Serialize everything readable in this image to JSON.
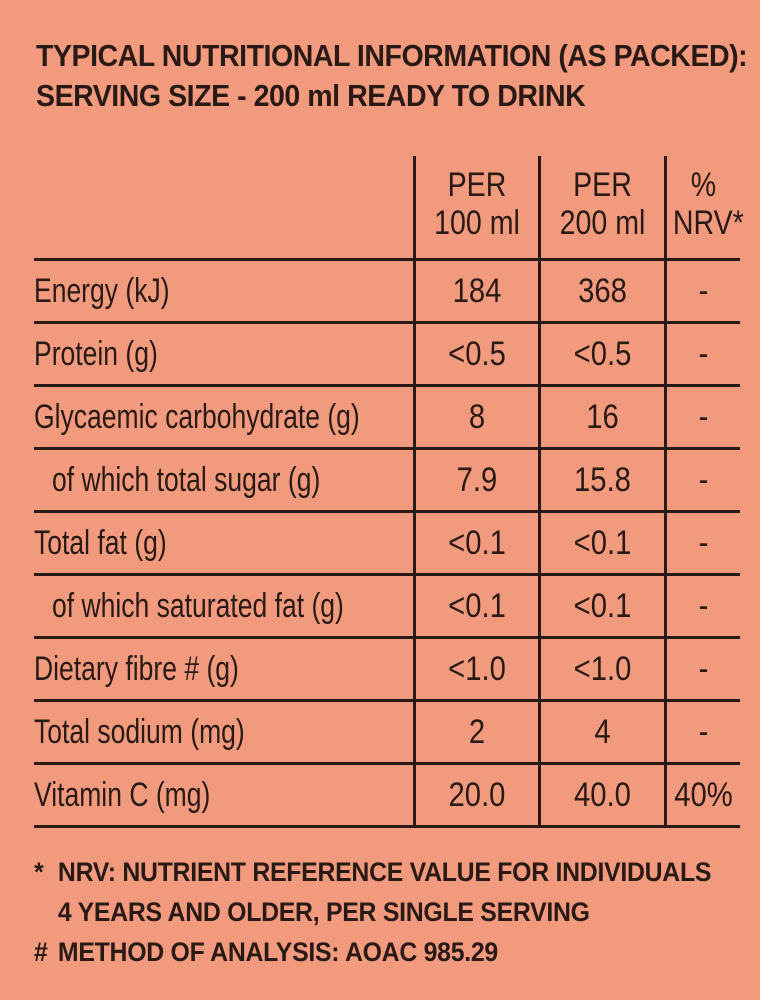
{
  "heading": {
    "line1": "TYPICAL NUTRITIONAL INFORMATION (AS PACKED):",
    "line2": "SERVING SIZE - 200 ml READY TO DRINK"
  },
  "table": {
    "columns": {
      "c1_top": "PER",
      "c1_bottom": "100 ml",
      "c2_top": "PER",
      "c2_bottom": "200 ml",
      "c3_top": "%",
      "c3_bottom": "NRV*"
    },
    "rows": [
      {
        "label": "Energy (kJ)",
        "per100": "184",
        "per200": "368",
        "nrv": "-"
      },
      {
        "label": "Protein (g)",
        "per100": "<0.5",
        "per200": "<0.5",
        "nrv": "-"
      },
      {
        "label": "Glycaemic carbohydrate (g)",
        "per100": "8",
        "per200": "16",
        "nrv": "-"
      },
      {
        "label": "of which total sugar (g)",
        "per100": "7.9",
        "per200": "15.8",
        "nrv": "-"
      },
      {
        "label": "Total fat (g)",
        "per100": "<0.1",
        "per200": "<0.1",
        "nrv": "-"
      },
      {
        "label": "of which saturated fat (g)",
        "per100": "<0.1",
        "per200": "<0.1",
        "nrv": "-"
      },
      {
        "label": "Dietary fibre # (g)",
        "per100": "<1.0",
        "per200": "<1.0",
        "nrv": "-"
      },
      {
        "label": "Total sodium (mg)",
        "per100": "2",
        "per200": "4",
        "nrv": "-"
      },
      {
        "label": "Vitamin C (mg)",
        "per100": "20.0",
        "per200": "40.0",
        "nrv": "40%"
      }
    ]
  },
  "footnotes": {
    "nrv_mark": "*",
    "nrv_line1": "NRV: NUTRIENT REFERENCE VALUE FOR INDIVIDUALS",
    "nrv_line2": "4 YEARS AND OLDER, PER SINGLE SERVING",
    "method_mark": "#",
    "method_line": "METHOD OF ANALYSIS: AOAC 985.29"
  },
  "colors": {
    "background": "#F19A7E",
    "ink": "#2A1A16"
  }
}
